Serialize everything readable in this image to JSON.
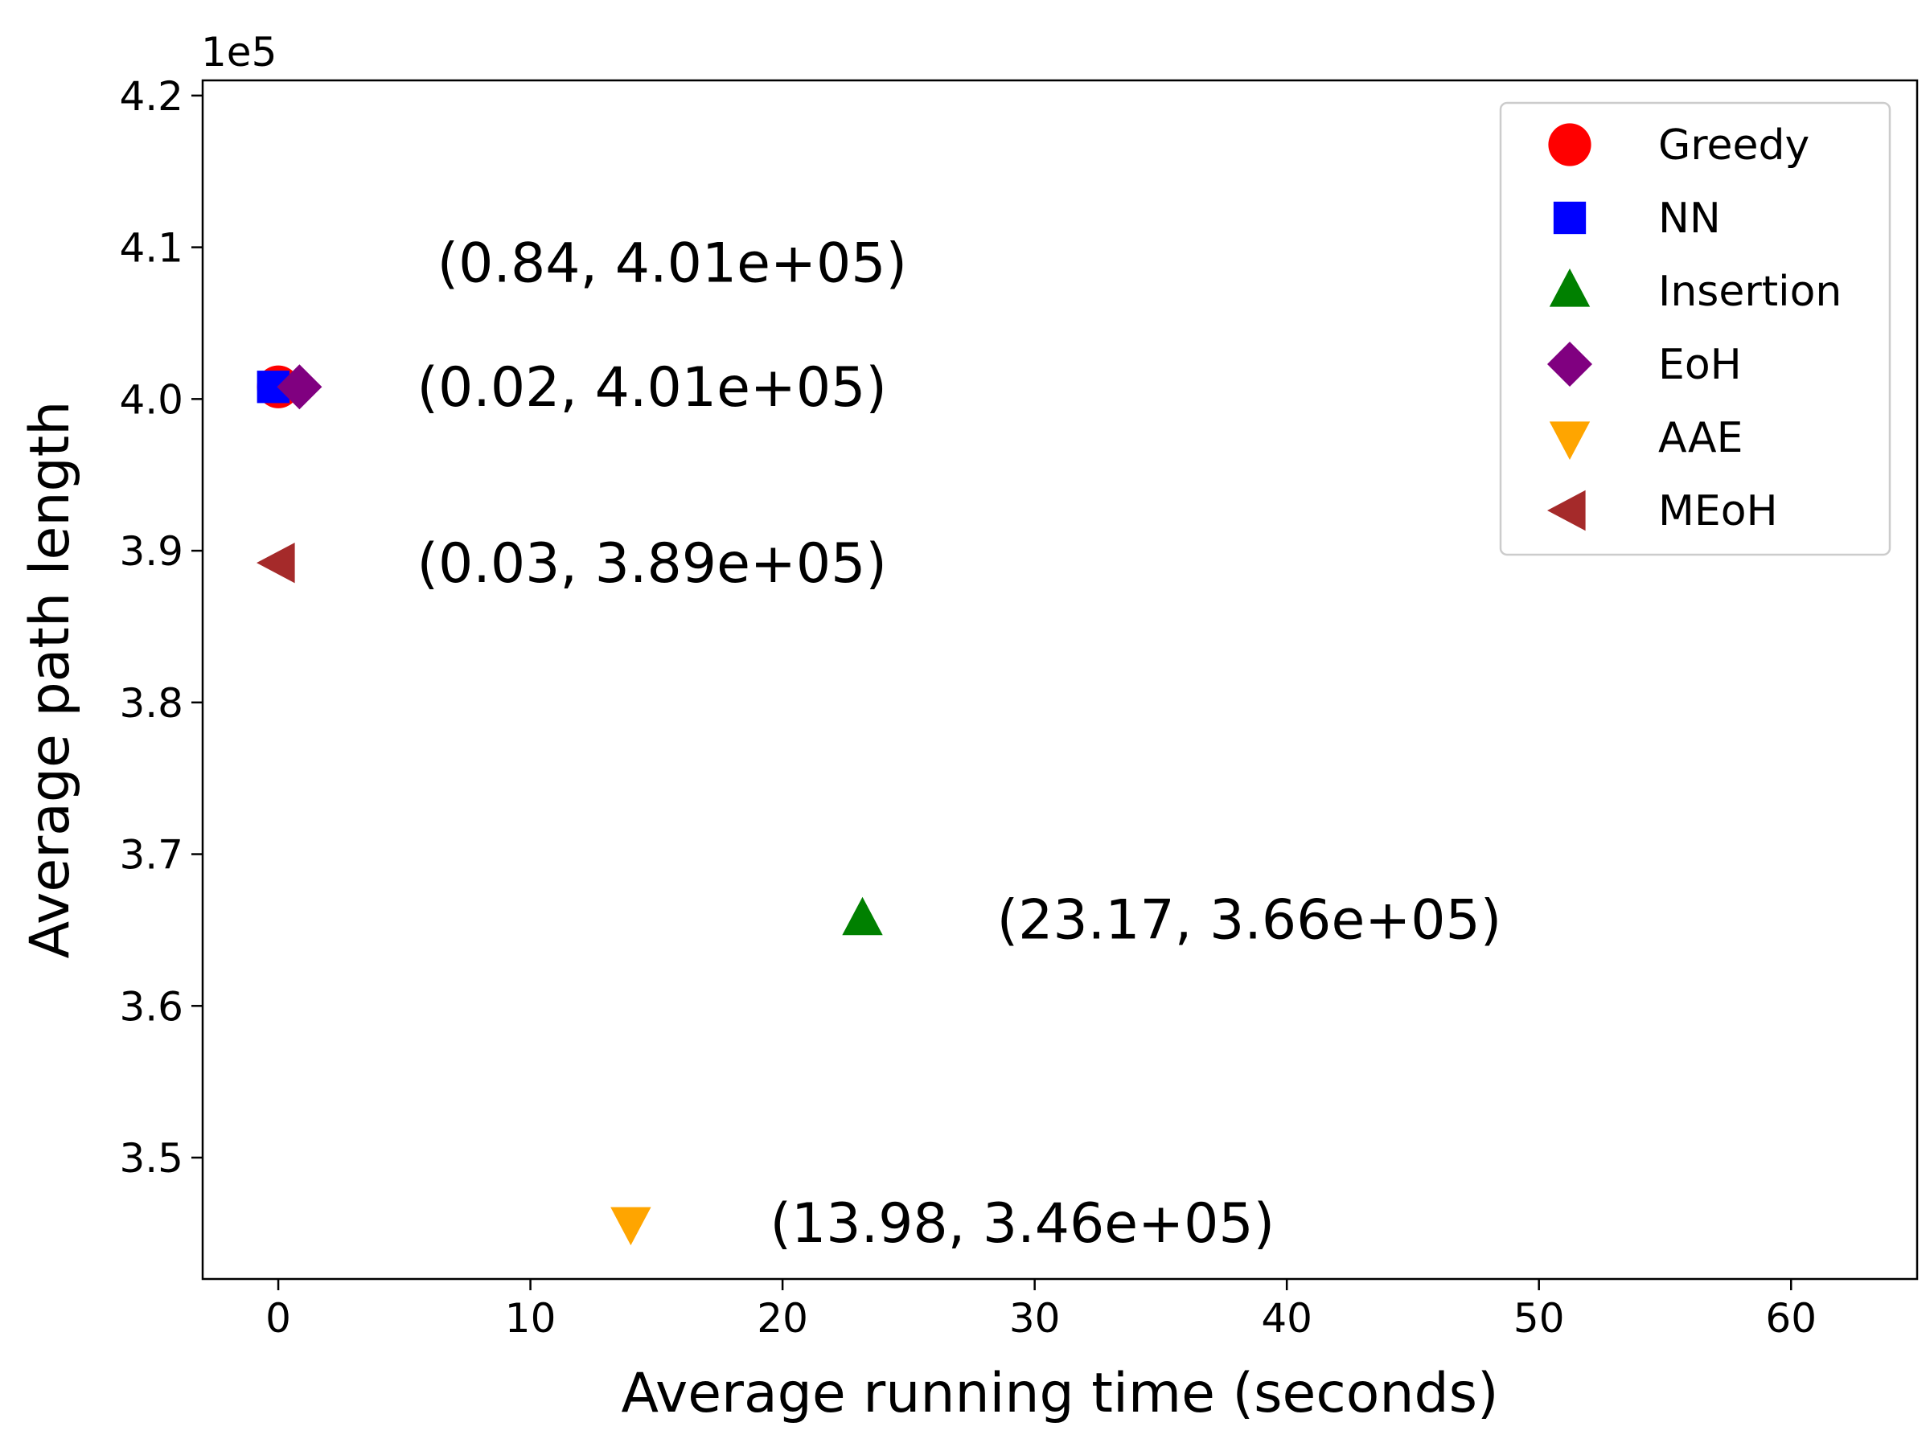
{
  "chart_data": {
    "type": "scatter",
    "title": "",
    "xlabel": "Average running time (seconds)",
    "ylabel": "Average path length",
    "y_offset_label": "1e5",
    "xlim": [
      -3,
      65
    ],
    "ylim": [
      3.42,
      4.21
    ],
    "xticks": [
      0,
      10,
      20,
      30,
      40,
      50,
      60
    ],
    "xtick_labels": [
      "0",
      "10",
      "20",
      "30",
      "40",
      "50",
      "60"
    ],
    "yticks": [
      3.5,
      3.6,
      3.7,
      3.8,
      3.9,
      4.0,
      4.1,
      4.2
    ],
    "ytick_labels": [
      "3.5",
      "3.6",
      "3.7",
      "3.8",
      "3.9",
      "4.0",
      "4.1",
      "4.2"
    ],
    "grid": false,
    "legend_position": "top-right",
    "series": [
      {
        "name": "Greedy",
        "marker": "circle",
        "color": "#ff0000",
        "x": 0.0,
        "y": 4.008
      },
      {
        "name": "NN",
        "marker": "square",
        "color": "#0000ff",
        "x": -0.2,
        "y": 4.008
      },
      {
        "name": "Insertion",
        "marker": "triangle-up",
        "color": "#008000",
        "x": 23.17,
        "y": 3.657
      },
      {
        "name": "EoH",
        "marker": "diamond",
        "color": "#800080",
        "x": 0.84,
        "y": 4.008
      },
      {
        "name": "AAE",
        "marker": "triangle-down",
        "color": "#ffa500",
        "x": 13.98,
        "y": 3.457
      },
      {
        "name": "MEoH",
        "marker": "triangle-left",
        "color": "#a52a2a",
        "x": 0.03,
        "y": 3.892
      }
    ],
    "annotations": [
      {
        "text": "(0.84, 4.01e+05)",
        "x": 6.3,
        "y": 4.09
      },
      {
        "text": "(0.02, 4.01e+05)",
        "x": 5.5,
        "y": 4.008
      },
      {
        "text": "(0.03, 3.89e+05)",
        "x": 5.5,
        "y": 3.892
      },
      {
        "text": "(23.17, 3.66e+05)",
        "x": 28.5,
        "y": 3.657
      },
      {
        "text": "(13.98, 3.46e+05)",
        "x": 19.5,
        "y": 3.457
      }
    ]
  }
}
